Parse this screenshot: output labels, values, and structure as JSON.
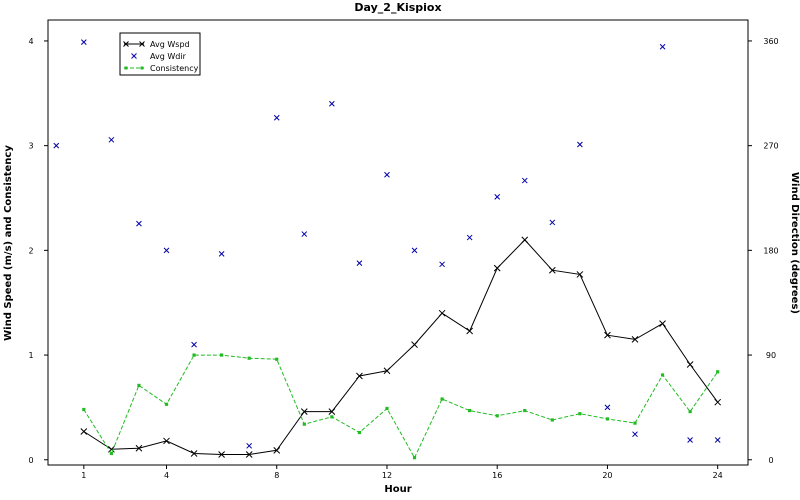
{
  "chart_data": {
    "type": "line",
    "title": "Day_2_Kispiox",
    "xlabel": "Hour",
    "ylabel_left": "Wind Speed (m/s) and Consistency",
    "ylabel_right": "Wind Direction (degrees)",
    "xlim": [
      -0.3,
      25.1
    ],
    "ylim_left": [
      -0.05,
      4.2
    ],
    "ylim_right": [
      -4.5,
      378
    ],
    "x_ticks": [
      1,
      4,
      8,
      12,
      16,
      20,
      24
    ],
    "y_ticks_left": [
      0,
      1,
      2,
      3,
      4
    ],
    "y_ticks_right": [
      0,
      90,
      180,
      270,
      360
    ],
    "legend_position": "top-left",
    "colors": {
      "avg_wspd": "#000000",
      "avg_wdir": "#0000aa",
      "consistency": "#22bb22"
    },
    "series": [
      {
        "name": "Avg Wspd",
        "axis": "left",
        "style": "line-x",
        "x": [
          1,
          2,
          3,
          4,
          5,
          6,
          7,
          8,
          9,
          10,
          11,
          12,
          13,
          14,
          15,
          16,
          17,
          18,
          19,
          20,
          21,
          22,
          23,
          24
        ],
        "y": [
          0.27,
          0.1,
          0.11,
          0.18,
          0.06,
          0.05,
          0.05,
          0.09,
          0.46,
          0.46,
          0.8,
          0.85,
          1.1,
          1.4,
          1.23,
          1.83,
          2.1,
          1.81,
          1.77,
          1.19,
          1.15,
          1.3,
          0.91,
          0.55
        ]
      },
      {
        "name": "Avg Wdir",
        "axis": "right",
        "style": "markers-x",
        "x": [
          0,
          1,
          2,
          3,
          4,
          5,
          6,
          7,
          8,
          9,
          10,
          11,
          12,
          13,
          14,
          15,
          16,
          17,
          18,
          19,
          20,
          21,
          22,
          23,
          24
        ],
        "y": [
          270,
          359,
          275,
          203,
          180,
          99,
          177,
          12,
          294,
          194,
          306,
          169,
          245,
          180,
          168,
          191,
          226,
          240,
          204,
          271,
          45,
          22,
          355,
          17,
          17
        ]
      },
      {
        "name": "Consistency",
        "axis": "left",
        "style": "dashed-dot",
        "x": [
          1,
          2,
          3,
          4,
          5,
          6,
          7,
          8,
          9,
          10,
          11,
          12,
          13,
          14,
          15,
          16,
          17,
          18,
          19,
          20,
          21,
          22,
          23,
          24
        ],
        "y": [
          0.48,
          0.06,
          0.71,
          0.53,
          1.0,
          1.0,
          0.97,
          0.96,
          0.34,
          0.41,
          0.26,
          0.49,
          0.02,
          0.58,
          0.47,
          0.42,
          0.47,
          0.38,
          0.44,
          0.39,
          0.35,
          0.81,
          0.46,
          0.84
        ]
      }
    ]
  }
}
